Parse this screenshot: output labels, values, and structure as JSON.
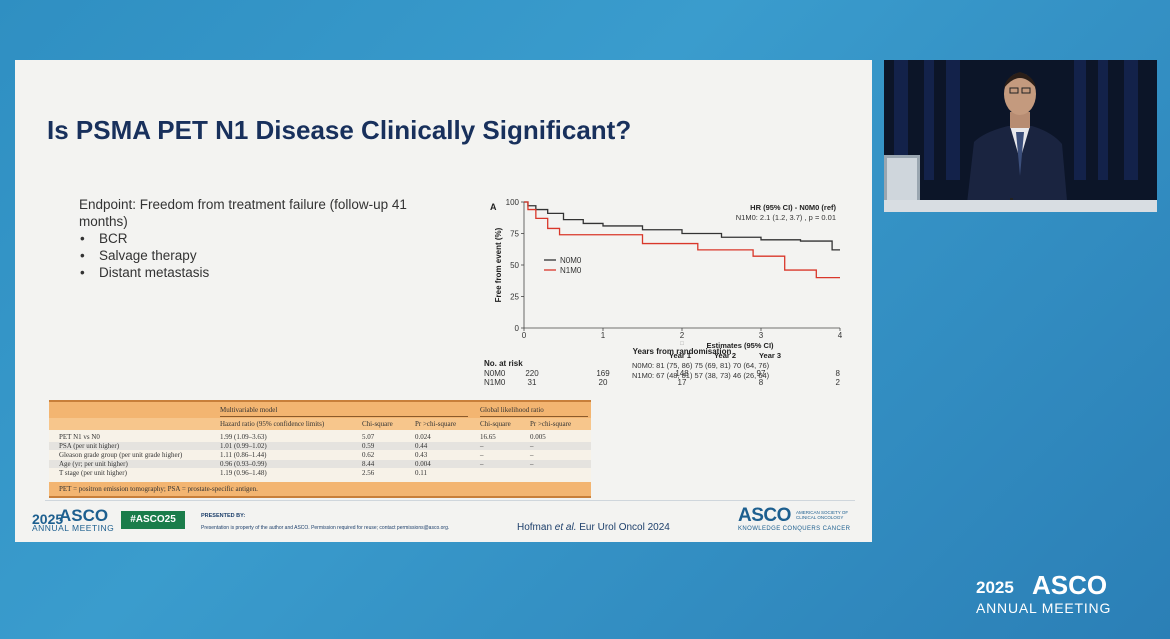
{
  "slide": {
    "title": "Is PSMA PET N1 Disease Clinically Significant?",
    "endpoint_text": "Endpoint: Freedom from treatment failure (follow-up 41 months)",
    "bullets": [
      "BCR",
      "Salvage therapy",
      "Distant metastasis"
    ]
  },
  "chart_data": {
    "type": "line",
    "panel_label": "A",
    "xlabel": "Years from randomisation",
    "ylabel": "Free from event (%)",
    "xlim": [
      0,
      4
    ],
    "ylim": [
      0,
      100
    ],
    "x_ticks": [
      "0",
      "1",
      "2",
      "3",
      "4"
    ],
    "y_ticks": [
      "0",
      "25",
      "50",
      "75",
      "100"
    ],
    "hr_title": "HR (95% CI) - N0M0 (ref)",
    "hr_text": "N1M0:  2.1 (1.2, 3.7) ,  p = 0.01",
    "legend": "middle-left",
    "series": [
      {
        "name": "N0M0",
        "color": "#333333",
        "points": [
          [
            0,
            100
          ],
          [
            0.05,
            97
          ],
          [
            0.15,
            94
          ],
          [
            0.3,
            91
          ],
          [
            0.5,
            86
          ],
          [
            0.75,
            83
          ],
          [
            1.0,
            81
          ],
          [
            1.5,
            78
          ],
          [
            2.0,
            75
          ],
          [
            2.5,
            72
          ],
          [
            3.0,
            70
          ],
          [
            3.5,
            69
          ],
          [
            3.9,
            66
          ],
          [
            3.9,
            62
          ],
          [
            4.0,
            62
          ]
        ]
      },
      {
        "name": "N1M0",
        "color": "#d9372a",
        "points": [
          [
            0,
            100
          ],
          [
            0.05,
            94
          ],
          [
            0.15,
            87
          ],
          [
            0.3,
            79
          ],
          [
            0.45,
            74
          ],
          [
            1.0,
            74
          ],
          [
            1.5,
            67
          ],
          [
            2.0,
            67
          ],
          [
            2.2,
            62
          ],
          [
            2.8,
            62
          ],
          [
            2.9,
            57
          ],
          [
            3.0,
            57
          ],
          [
            3.3,
            46
          ],
          [
            3.7,
            46
          ],
          [
            3.7,
            40
          ],
          [
            4.0,
            40
          ]
        ]
      }
    ],
    "estimates": {
      "title": "Estimates (95% CI)",
      "years": [
        "Year 1",
        "Year 2",
        "Year 3"
      ],
      "rows": [
        "N0M0: 81 (75, 86)  75 (69, 81)  70 (64, 76)",
        "N1M0: 67 (48, 81)  57 (38, 73)  46 (26, 64)"
      ]
    },
    "at_risk": {
      "title": "No. at risk",
      "rows": [
        {
          "name": "N0M0",
          "values": [
            "220",
            "169",
            "148",
            "97",
            "8"
          ]
        },
        {
          "name": "N1M0",
          "values": [
            "31",
            "20",
            "17",
            "8",
            "2"
          ]
        }
      ]
    },
    "center_marker": "□"
  },
  "table": {
    "group1": "Multivariable model",
    "group2": "Global likelihood ratio",
    "columns": [
      "Hazard ratio (95% confidence limits)",
      "Chi-square",
      "Pr >chi-square",
      "Chi-square",
      "Pr >chi-square"
    ],
    "rows": [
      {
        "label": "PET N1 vs N0",
        "hr": "1.99 (1.09–3.63)",
        "chi": "5.07",
        "p": "0.024",
        "gchi": "16.65",
        "gp": "0.005"
      },
      {
        "label": "PSA (per unit higher)",
        "hr": "1.01 (0.99–1.02)",
        "chi": "0.59",
        "p": "0.44",
        "gchi": "–",
        "gp": "–"
      },
      {
        "label": "Gleason grade group (per unit grade higher)",
        "hr": "1.11 (0.86–1.44)",
        "chi": "0.62",
        "p": "0.43",
        "gchi": "–",
        "gp": "–"
      },
      {
        "label": "Age (yr; per unit higher)",
        "hr": "0.96 (0.93–0.99)",
        "chi": "8.44",
        "p": "0.004",
        "gchi": "–",
        "gp": "–"
      },
      {
        "label": "T stage (per unit higher)",
        "hr": "1.19 (0.96–1.48)",
        "chi": "2.56",
        "p": "0.11",
        "gchi": "",
        "gp": ""
      }
    ],
    "footnote": "PET = positron emission tomography; PSA = prostate-specific antigen."
  },
  "footer": {
    "year": "2025",
    "asco": "ASCO",
    "annual": "ANNUAL MEETING",
    "hashtag": "#ASCO25",
    "presented_by": "PRESENTED BY:",
    "note": "Presentation is property of the author and ASCO. Permission required for reuse; contact permissions@asco.org.",
    "citation_author": "Hofman",
    "citation_etal": "et al.",
    "citation_rest": "Eur Urol Oncol 2024",
    "asco_logo": "ASCO",
    "asco_side": "AMERICAN SOCIETY OF CLINICAL ONCOLOGY",
    "asco_tag": "KNOWLEDGE CONQUERS CANCER"
  },
  "brand": {
    "year": "2025",
    "asco": "ASCO",
    "annual": "ANNUAL MEETING"
  }
}
